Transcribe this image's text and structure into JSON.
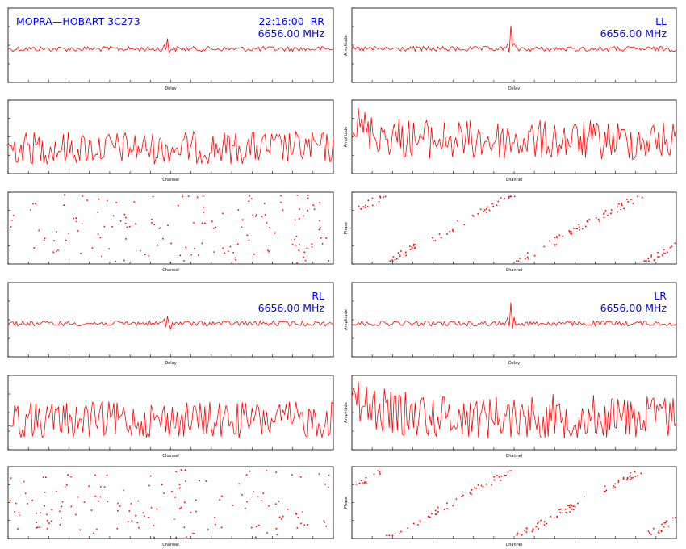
{
  "header": {
    "source": "MOPRA—HOBART 3C273",
    "time_stokes": "22:16:00  RR",
    "freq_rr": "6656.00 MHz",
    "label_ll": "LL",
    "freq_ll": "6656.00 MHz",
    "label_rl": "RL",
    "freq_rl": "6656.00 MHz",
    "label_lr": "LR",
    "freq_lr": "6656.00 MHz"
  },
  "colors": {
    "trace": "#ff0000",
    "text": "#0000ff",
    "axes": "#000000"
  },
  "labels": {
    "delay": "Delay",
    "channel": "Channel",
    "amplitude": "Amplitude",
    "phase": "Phase"
  },
  "chart_data": [
    {
      "type": "line",
      "panel": "RR delay",
      "xlabel": "Delay",
      "series": [
        {
          "noise": 0.07,
          "spike_at": 0.49,
          "spike_height": 0.45
        }
      ]
    },
    {
      "type": "line",
      "panel": "RR amplitude",
      "xlabel": "Channel",
      "series": [
        {
          "level": 0.25,
          "noise": 0.45
        }
      ]
    },
    {
      "type": "scatter",
      "panel": "RR phase",
      "xlabel": "Channel",
      "series": [
        {
          "pattern": "random"
        }
      ]
    },
    {
      "type": "line",
      "panel": "LL delay",
      "xlabel": "Delay",
      "ylabel": "Amplitude",
      "series": [
        {
          "noise": 0.07,
          "spike_at": 0.49,
          "spike_height": 1.0
        }
      ]
    },
    {
      "type": "line",
      "panel": "LL amplitude",
      "xlabel": "Channel",
      "ylabel": "Amplitude",
      "series": [
        {
          "level": 0.35,
          "noise": 0.55
        }
      ]
    },
    {
      "type": "scatter",
      "panel": "LL phase",
      "xlabel": "Channel",
      "ylabel": "Phase",
      "series": [
        {
          "pattern": "wrapping slope",
          "wraps": 2.5
        }
      ]
    },
    {
      "type": "line",
      "panel": "RL delay",
      "xlabel": "Delay",
      "series": [
        {
          "noise": 0.07,
          "spike_at": 0.49,
          "spike_height": 0.3
        }
      ]
    },
    {
      "type": "line",
      "panel": "RL amplitude",
      "xlabel": "Channel",
      "series": [
        {
          "level": 0.3,
          "noise": 0.5
        }
      ]
    },
    {
      "type": "scatter",
      "panel": "RL phase",
      "xlabel": "Channel",
      "series": [
        {
          "pattern": "random"
        }
      ]
    },
    {
      "type": "line",
      "panel": "LR delay",
      "xlabel": "Delay",
      "ylabel": "Amplitude",
      "series": [
        {
          "noise": 0.07,
          "spike_at": 0.49,
          "spike_height": 0.9
        }
      ]
    },
    {
      "type": "line",
      "panel": "LR amplitude",
      "xlabel": "Channel",
      "ylabel": "Amplitude",
      "series": [
        {
          "level": 0.35,
          "noise": 0.6
        }
      ]
    },
    {
      "type": "scatter",
      "panel": "LR phase",
      "xlabel": "Channel",
      "ylabel": "Phase",
      "series": [
        {
          "pattern": "wrapping slope",
          "wraps": 2.5
        }
      ]
    }
  ]
}
